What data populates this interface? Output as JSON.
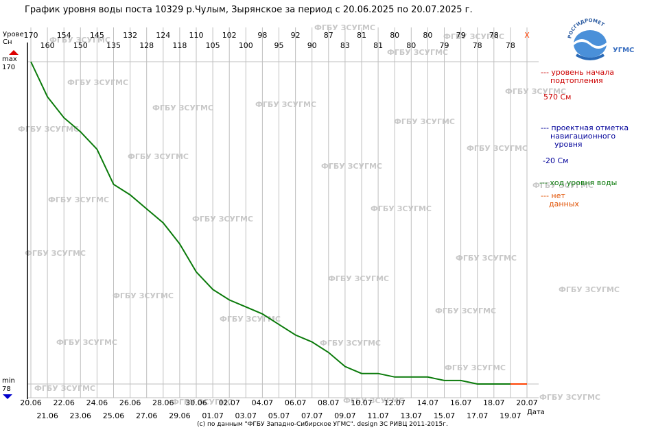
{
  "page": {
    "title": "График уровня воды поста 10329 р.Чулым, Зырянское за период с 20.06.2025 по 20.07.2025 г.",
    "footer": "(c) по данным \"ФГБУ Западно-Сибирское УГМС\". design ЗС РИВЦ 2011-2015г.",
    "watermark": "ФГБУ ЗСУГМС",
    "y_axis_title_1": "Урове",
    "y_axis_title_2": "Сн",
    "x_axis_title": "Дата",
    "max_label": "max",
    "max_value": "170",
    "min_label": "min",
    "min_value": "78",
    "missing_marker": "X"
  },
  "logo": {
    "arc_text": "РОСГИДРОМЕТ",
    "side_text": "УГМС"
  },
  "legend": {
    "flood_label_1": "--- уровень начала",
    "flood_label_2": "подтопления",
    "flood_value": "570 См",
    "nav_label_1": "--- проектная отметка",
    "nav_label_2": "навигационного",
    "nav_label_3": "уровня",
    "nav_value": "-20 См",
    "level_label": "--- ход уровня воды",
    "nodata_label_1": "--- нет",
    "nodata_label_2": "данных"
  },
  "colors": {
    "level_line": "#0a7a0a",
    "no_data": "#ff4000",
    "flood": "#cc0000",
    "nav": "#000099",
    "grid": "#bfbfbf",
    "watermark": "#c8c8c8",
    "arrow_up": "#dd0000",
    "arrow_down": "#0000cc"
  },
  "chart_data": {
    "type": "line",
    "dates": [
      "20.06",
      "21.06",
      "22.06",
      "23.06",
      "24.06",
      "25.06",
      "26.06",
      "27.06",
      "28.06",
      "29.06",
      "30.06",
      "01.07",
      "02.07",
      "03.07",
      "04.07",
      "05.07",
      "06.07",
      "07.07",
      "08.07",
      "09.07",
      "10.07",
      "11.07",
      "12.07",
      "13.07",
      "14.07",
      "15.07",
      "16.07",
      "17.07",
      "18.07",
      "19.07",
      "20.07"
    ],
    "top_values": [
      "170",
      "160",
      "154",
      "150",
      "145",
      "135",
      "132",
      "128",
      "124",
      "118",
      "110",
      "105",
      "102",
      "100",
      "98",
      "95",
      "92",
      "90",
      "87",
      "83",
      "81",
      "81",
      "80",
      "80",
      "80",
      "79",
      "79",
      "78",
      "78",
      "78",
      "X"
    ],
    "series": [
      {
        "values": [
          170,
          160,
          154,
          150,
          145,
          135,
          132,
          128,
          124,
          118,
          110,
          105,
          102,
          100,
          98,
          95,
          92,
          90,
          87,
          83,
          81,
          81,
          80,
          80,
          80,
          79,
          79,
          78,
          78,
          78,
          null
        ]
      }
    ],
    "no_data_dates": [
      "20.07"
    ],
    "ylim": [
      78,
      170
    ],
    "grid": true
  }
}
